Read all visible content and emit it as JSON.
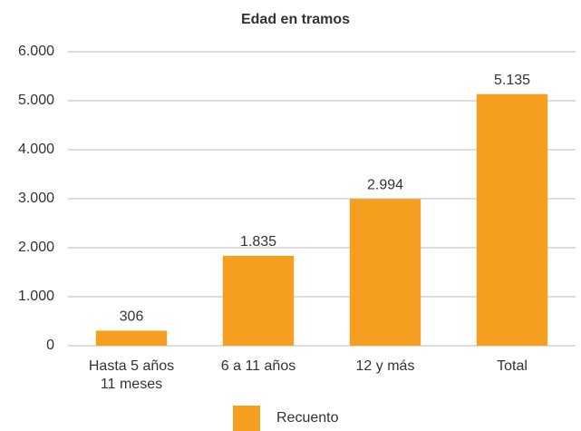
{
  "chart_data": {
    "type": "bar",
    "title": "Edad en tramos",
    "categories": [
      "Hasta 5 años\n11 meses",
      "6 a 11 años",
      "12 y más",
      "Total"
    ],
    "series": [
      {
        "name": "Recuento",
        "color": "#f59e1f",
        "values": [
          306,
          1835,
          2994,
          5135
        ],
        "value_labels": [
          "306",
          "1.835",
          "2.994",
          "5.135"
        ]
      }
    ],
    "ylim": [
      0,
      6000
    ],
    "yticks": [
      0,
      {
        "value": 1000,
        "label": "1.000"
      },
      {
        "value": 2000,
        "label": "2.000"
      },
      {
        "value": 3000,
        "label": "3.000"
      },
      {
        "value": 4000,
        "label": "4.000"
      },
      {
        "value": 5000,
        "label": "5.000"
      },
      {
        "value": 6000,
        "label": "6.000"
      }
    ],
    "grid": true,
    "legend": "bottom"
  }
}
